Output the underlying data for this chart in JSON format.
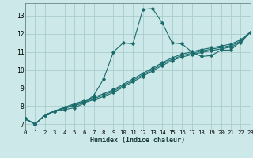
{
  "title": "",
  "xlabel": "Humidex (Indice chaleur)",
  "xlim": [
    0,
    23
  ],
  "ylim": [
    6.7,
    13.7
  ],
  "xticks": [
    0,
    1,
    2,
    3,
    4,
    5,
    6,
    7,
    8,
    9,
    10,
    11,
    12,
    13,
    14,
    15,
    16,
    17,
    18,
    19,
    20,
    21,
    22,
    23
  ],
  "yticks": [
    7,
    8,
    9,
    10,
    11,
    12,
    13
  ],
  "bg_color": "#cce8e8",
  "grid_color": "#aacccc",
  "line_color": "#1a6b6b",
  "lines": [
    [
      7.3,
      7.0,
      7.5,
      7.7,
      7.8,
      7.9,
      8.15,
      8.6,
      9.5,
      11.0,
      11.5,
      11.45,
      13.35,
      13.4,
      12.6,
      11.5,
      11.45,
      11.0,
      10.75,
      10.8,
      11.1,
      11.1,
      11.6,
      12.1
    ],
    [
      7.3,
      7.0,
      7.5,
      7.72,
      7.87,
      8.02,
      8.18,
      8.35,
      8.52,
      8.75,
      9.05,
      9.35,
      9.65,
      9.95,
      10.25,
      10.52,
      10.72,
      10.85,
      10.97,
      11.07,
      11.17,
      11.27,
      11.52,
      12.1
    ],
    [
      7.3,
      7.0,
      7.5,
      7.72,
      7.9,
      8.07,
      8.24,
      8.42,
      8.6,
      8.83,
      9.13,
      9.43,
      9.73,
      10.03,
      10.33,
      10.6,
      10.8,
      10.93,
      11.05,
      11.15,
      11.25,
      11.35,
      11.6,
      12.1
    ],
    [
      7.3,
      7.0,
      7.5,
      7.72,
      7.93,
      8.12,
      8.3,
      8.49,
      8.68,
      8.91,
      9.21,
      9.51,
      9.81,
      10.11,
      10.41,
      10.68,
      10.88,
      11.01,
      11.13,
      11.23,
      11.33,
      11.43,
      11.68,
      12.1
    ]
  ]
}
